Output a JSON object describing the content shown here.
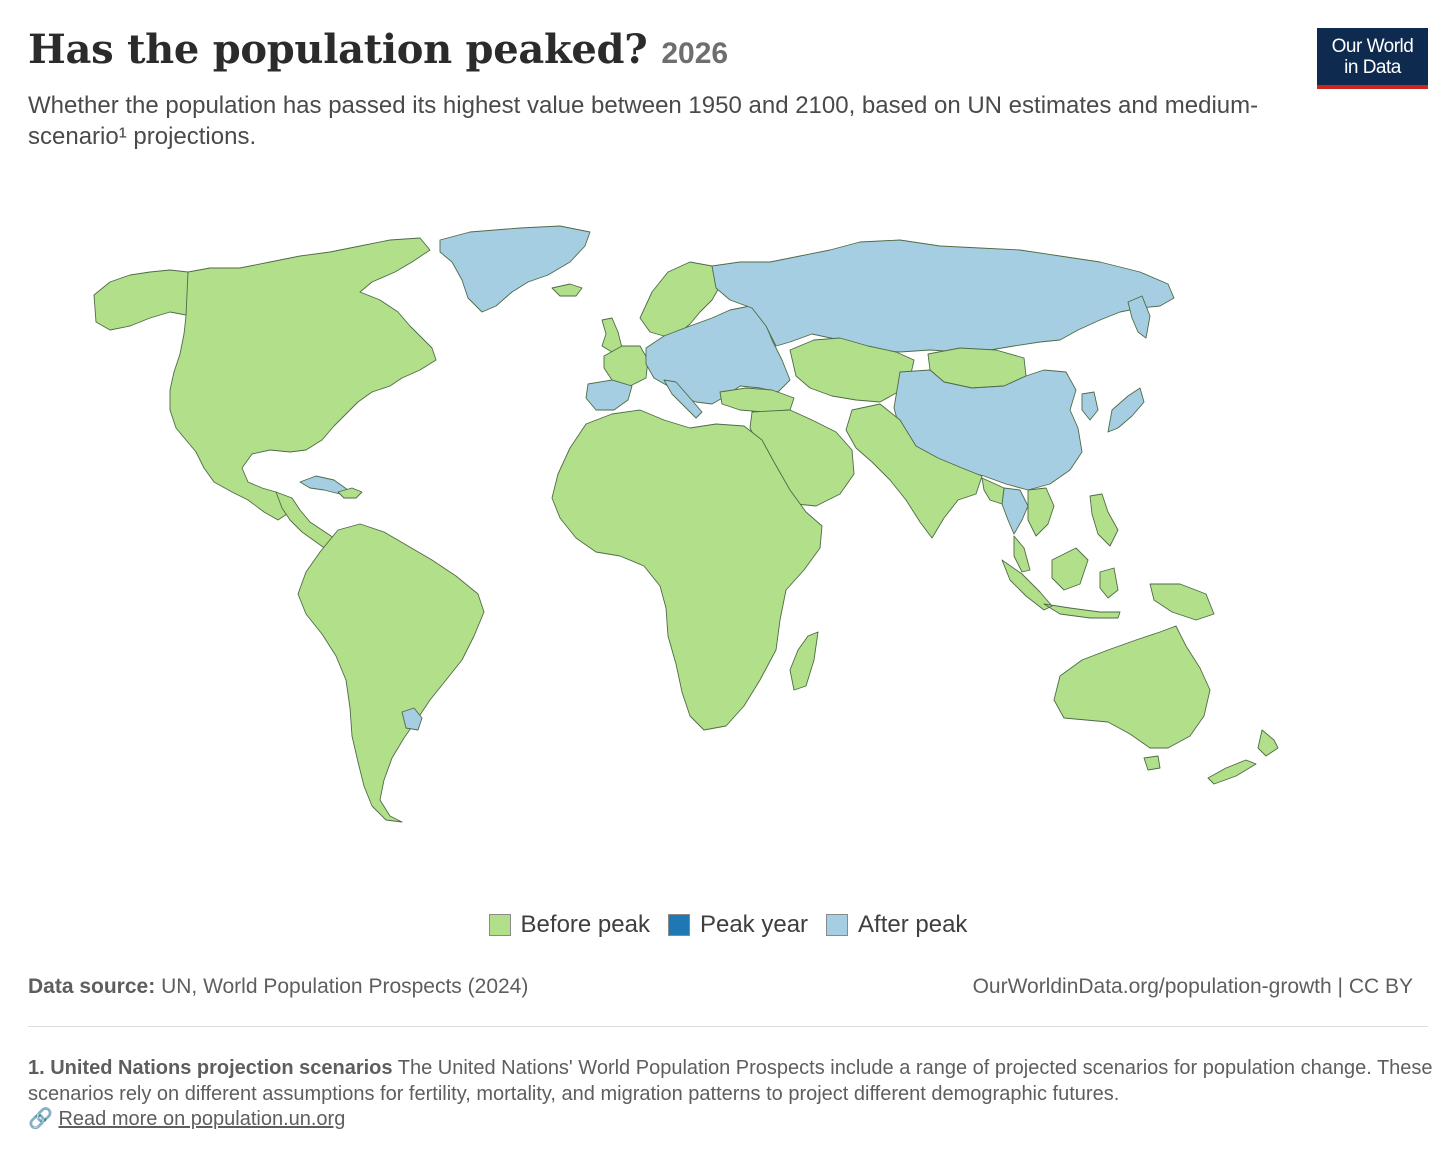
{
  "header": {
    "title": "Has the population peaked?",
    "year": "2026",
    "subtitle": "Whether the population has passed its highest value between 1950 and 2100, based on UN estimates and medium-scenario¹ projections."
  },
  "logo": {
    "line1": "Our World",
    "line2": "in Data",
    "background": "#0f2a4f",
    "accent": "#ce261e"
  },
  "map_data": {
    "categories": [
      {
        "key": "before",
        "label": "Before peak",
        "color": "#b2df8a"
      },
      {
        "key": "peak",
        "label": "Peak year",
        "color": "#1f78b4"
      },
      {
        "key": "after",
        "label": "After peak",
        "color": "#a6cee3"
      }
    ],
    "regions": [
      {
        "name": "North America",
        "status": "before"
      },
      {
        "name": "Greenland",
        "status": "after"
      },
      {
        "name": "Alaska",
        "status": "before"
      },
      {
        "name": "Central America & Caribbean",
        "status": "before"
      },
      {
        "name": "Cuba",
        "status": "after"
      },
      {
        "name": "South America",
        "status": "before"
      },
      {
        "name": "Uruguay",
        "status": "after"
      },
      {
        "name": "Africa",
        "status": "before"
      },
      {
        "name": "Madagascar",
        "status": "before"
      },
      {
        "name": "Europe",
        "status": "after"
      },
      {
        "name": "Scandinavia",
        "status": "before"
      },
      {
        "name": "Iceland",
        "status": "before"
      },
      {
        "name": "United Kingdom",
        "status": "before"
      },
      {
        "name": "France & Benelux",
        "status": "before"
      },
      {
        "name": "Spain & Portugal",
        "status": "after"
      },
      {
        "name": "Russia",
        "status": "after"
      },
      {
        "name": "Turkey",
        "status": "before"
      },
      {
        "name": "Middle East",
        "status": "before"
      },
      {
        "name": "Central Asia",
        "status": "before"
      },
      {
        "name": "Mongolia",
        "status": "before"
      },
      {
        "name": "China",
        "status": "after"
      },
      {
        "name": "Korea & Japan",
        "status": "after"
      },
      {
        "name": "South Asia",
        "status": "before"
      },
      {
        "name": "Thailand",
        "status": "after"
      },
      {
        "name": "Southeast Asia",
        "status": "before"
      },
      {
        "name": "Indonesia",
        "status": "before"
      },
      {
        "name": "Papua New Guinea",
        "status": "before"
      },
      {
        "name": "Australia",
        "status": "before"
      },
      {
        "name": "New Zealand",
        "status": "before"
      }
    ]
  },
  "source": {
    "label": "Data source:",
    "text": "UN, World Population Prospects (2024)",
    "right": "OurWorldinData.org/population-growth | CC BY"
  },
  "footnote": {
    "title": "1. United Nations projection scenarios",
    "text": "The United Nations' World Population Prospects include a range of projected scenarios for population change. These scenarios rely on different assumptions for fertility, mortality, and migration patterns to project different demographic futures.",
    "link_icon": "🔗",
    "link_text": "Read more on population.un.org"
  }
}
